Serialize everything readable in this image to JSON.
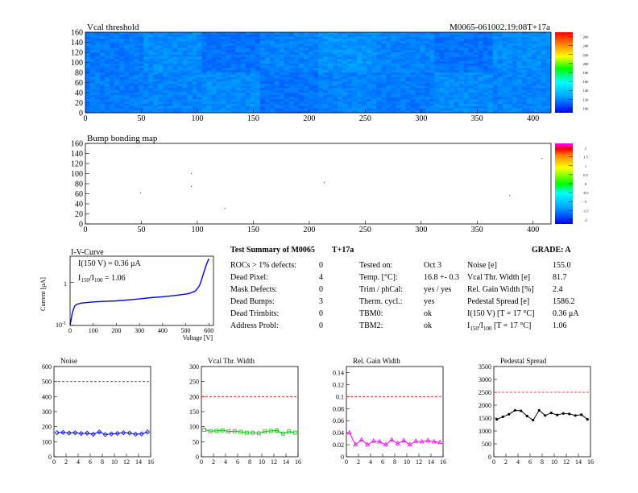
{
  "header": {
    "map_title": "Vcal threshold",
    "module_id": "M0065-061002.19:08T+17a",
    "bump_title": "Bump bonding map"
  },
  "map_axes": {
    "x_ticks": [
      "0",
      "50",
      "100",
      "150",
      "200",
      "250",
      "300",
      "350",
      "400"
    ],
    "y_ticks": [
      "0",
      "20",
      "40",
      "60",
      "80",
      "100",
      "120",
      "140",
      "160"
    ],
    "colorbar1_ticks": [
      "100",
      "120",
      "140",
      "160",
      "180",
      "200",
      "220",
      "240",
      "260"
    ],
    "colorbar2_ticks": [
      "-2",
      "-1.5",
      "-1",
      "-0.5",
      "0",
      "0.5",
      "1",
      "1.5",
      "2"
    ]
  },
  "iv": {
    "title": "I-V-Curve",
    "annot1": "I(150 V) = 0.36 μA",
    "annot2_a": "I",
    "annot2_sub1": "150",
    "annot2_b": "/I",
    "annot2_sub2": "100",
    "annot2_c": " = 1.06",
    "ylabel": "Current [μA]",
    "xlabel": "Voltage [V]",
    "x_ticks": [
      "0",
      "100",
      "200",
      "300",
      "400",
      "500",
      "600"
    ],
    "y_tick_1": "1",
    "y_tick_01": "10",
    "y_tick_01_exp": "-1"
  },
  "summary": {
    "title": "Test Summary of M0065",
    "subtitle": "T+17a",
    "grade": "GRADE:  A",
    "col1": [
      {
        "label": "ROCs > 1% defects:",
        "value": "0"
      },
      {
        "label": "Dead Pixel:",
        "value": "4"
      },
      {
        "label": "Mask Defects:",
        "value": "0"
      },
      {
        "label": "Dead Bumps:",
        "value": "3"
      },
      {
        "label": "Dead Trimbits:",
        "value": "0"
      },
      {
        "label": "Address Probl:",
        "value": "0"
      }
    ],
    "col2": [
      {
        "label": "Tested on:",
        "value": "Oct 3"
      },
      {
        "label": "Temp. [°C]:",
        "value": "16.8 +- 0.3"
      },
      {
        "label": "Trim / phCal:",
        "value": "yes / yes"
      },
      {
        "label": "Therm. cycl.:",
        "value": "yes"
      },
      {
        "label": "TBM0:",
        "value": "ok"
      },
      {
        "label": "TBM2:",
        "value": "ok"
      }
    ],
    "col3": [
      {
        "label": "Noise [e]",
        "value": "155.0"
      },
      {
        "label": "Vcal Thr. Width [e]",
        "value": "81.7"
      },
      {
        "label": "Rel. Gain Width [%]",
        "value": "2.4"
      },
      {
        "label": "Pedestal Spread [e]",
        "value": "1586.2"
      },
      {
        "label": "I(150 V) [T = 17 °C]",
        "value": "0.36 μA"
      },
      {
        "label_a": "I",
        "label_sub1": "150",
        "label_b": "/I",
        "label_sub2": "100",
        "label_c": "   [T = 17 °C]",
        "value": "1.06"
      }
    ]
  },
  "chart_data": [
    {
      "type": "line",
      "title": "I-V-Curve",
      "xlabel": "Voltage [V]",
      "ylabel": "Current [μA]",
      "yscale": "log",
      "xlim": [
        0,
        620
      ],
      "ylim": [
        0.1,
        4
      ],
      "x": [
        0,
        10,
        20,
        30,
        50,
        100,
        150,
        200,
        250,
        300,
        350,
        400,
        450,
        500,
        520,
        540,
        550,
        560,
        570,
        580,
        590,
        600
      ],
      "y": [
        0.1,
        0.2,
        0.28,
        0.31,
        0.33,
        0.35,
        0.36,
        0.37,
        0.39,
        0.41,
        0.44,
        0.46,
        0.49,
        0.53,
        0.56,
        0.62,
        0.7,
        0.85,
        1.2,
        1.8,
        2.6,
        3.5
      ]
    },
    {
      "type": "line",
      "title": "Noise",
      "xlim": [
        0,
        16
      ],
      "ylim": [
        0,
        600
      ],
      "x": [
        0,
        1,
        2,
        3,
        4,
        5,
        6,
        7,
        8,
        9,
        10,
        11,
        12,
        13,
        14,
        15
      ],
      "values": [
        160,
        162,
        158,
        160,
        155,
        157,
        150,
        165,
        148,
        152,
        155,
        160,
        158,
        150,
        152,
        165
      ],
      "reference": 500,
      "color": "#0000ff",
      "x_ticks": [
        "0",
        "2",
        "4",
        "6",
        "8",
        "10",
        "12",
        "14",
        "16"
      ],
      "y_ticks": [
        "0",
        "100",
        "200",
        "300",
        "400",
        "500",
        "600"
      ]
    },
    {
      "type": "line",
      "title": "Vcal Thr. Width",
      "xlim": [
        0,
        16
      ],
      "ylim": [
        0,
        300
      ],
      "x": [
        0,
        1,
        2,
        3,
        4,
        5,
        6,
        7,
        8,
        9,
        10,
        11,
        12,
        13,
        14,
        15
      ],
      "values": [
        90,
        85,
        86,
        88,
        84,
        85,
        83,
        80,
        80,
        78,
        84,
        86,
        87,
        77,
        84,
        80
      ],
      "reference": 200,
      "color": "#00cc00",
      "x_ticks": [
        "0",
        "2",
        "4",
        "6",
        "8",
        "10",
        "12",
        "14",
        "16"
      ],
      "y_ticks": [
        "0",
        "50",
        "100",
        "150",
        "200",
        "250",
        "300"
      ]
    },
    {
      "type": "line",
      "title": "Rel. Gain Width",
      "xlim": [
        0,
        16
      ],
      "ylim": [
        0,
        0.15
      ],
      "x": [
        0,
        1,
        2,
        3,
        4,
        5,
        6,
        7,
        8,
        9,
        10,
        11,
        12,
        13,
        14,
        15
      ],
      "values": [
        0.04,
        0.02,
        0.028,
        0.02,
        0.026,
        0.025,
        0.02,
        0.028,
        0.022,
        0.027,
        0.02,
        0.026,
        0.025,
        0.027,
        0.025,
        0.024
      ],
      "reference": 0.1,
      "color": "#ff00ff",
      "x_ticks": [
        "0",
        "2",
        "4",
        "6",
        "8",
        "10",
        "12",
        "14",
        "16"
      ],
      "y_ticks": [
        "0",
        "0.02",
        "0.04",
        "0.06",
        "0.08",
        "0.1",
        "0.12",
        "0.14"
      ]
    },
    {
      "type": "line",
      "title": "Pedestal Spread",
      "xlim": [
        0,
        16
      ],
      "ylim": [
        0,
        3500
      ],
      "x": [
        0,
        1,
        2,
        3,
        4,
        5,
        6,
        7,
        8,
        9,
        10,
        11,
        12,
        13,
        14,
        15
      ],
      "values": [
        1450,
        1550,
        1650,
        1800,
        1780,
        1580,
        1420,
        1800,
        1600,
        1700,
        1620,
        1680,
        1660,
        1600,
        1630,
        1450
      ],
      "reference": 2500,
      "color": "#000000",
      "x_ticks": [
        "0",
        "2",
        "4",
        "6",
        "8",
        "10",
        "12",
        "14",
        "16"
      ],
      "y_ticks": [
        "0",
        "500",
        "1000",
        "1500",
        "2000",
        "2500",
        "3000",
        "3500"
      ]
    }
  ]
}
